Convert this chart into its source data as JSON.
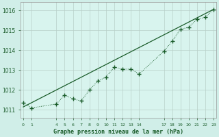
{
  "title": "Graphe pression niveau de la mer (hPa)",
  "background_color": "#d0eee8",
  "plot_bg_color": "#d8f4ee",
  "line_color": "#1a5c2a",
  "xlim": [
    -0.3,
    23.3
  ],
  "ylim": [
    1010.6,
    1016.4
  ],
  "yticks": [
    1011,
    1012,
    1013,
    1014,
    1015,
    1016
  ],
  "x_ticks": [
    0,
    1,
    4,
    5,
    6,
    7,
    8,
    9,
    10,
    11,
    12,
    13,
    14,
    17,
    18,
    19,
    20,
    21,
    22,
    23
  ],
  "trend_x": [
    0,
    23
  ],
  "trend_y": [
    1011.15,
    1016.05
  ],
  "data_x": [
    0,
    1,
    4,
    5,
    6,
    7,
    8,
    9,
    10,
    11,
    12,
    13,
    14,
    17,
    18,
    19,
    20,
    21,
    22,
    23
  ],
  "data_y": [
    1011.35,
    1011.1,
    1011.3,
    1011.75,
    1011.55,
    1011.45,
    1012.0,
    1012.45,
    1012.65,
    1013.15,
    1013.05,
    1013.05,
    1012.8,
    1013.95,
    1014.45,
    1015.05,
    1015.15,
    1015.55,
    1015.65,
    1016.05
  ]
}
